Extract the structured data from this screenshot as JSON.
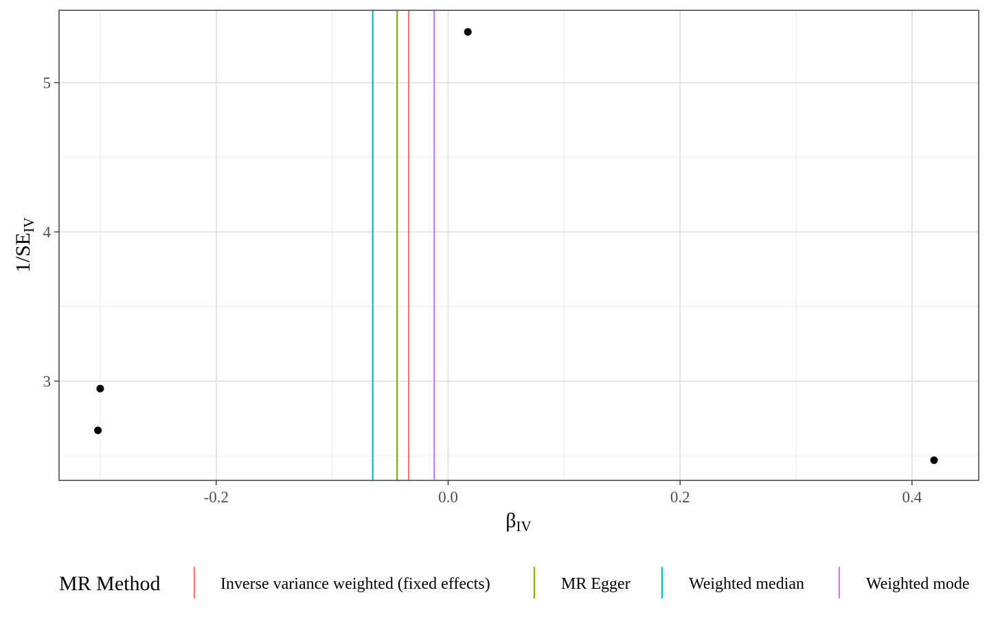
{
  "chart_data": {
    "type": "scatter",
    "xlabel": {
      "main": "β",
      "sub": "IV"
    },
    "ylabel": {
      "main": "1/SE",
      "sub": "IV"
    },
    "xlim": [
      -0.3355,
      0.4575
    ],
    "ylim": [
      2.335,
      5.485
    ],
    "x_ticks": [
      -0.2,
      0.0,
      0.2,
      0.4
    ],
    "x_tick_labels": [
      "-0.2",
      "0.0",
      "0.2",
      "0.4"
    ],
    "y_ticks": [
      3,
      4,
      5
    ],
    "y_tick_labels": [
      "3",
      "4",
      "5"
    ],
    "grid": true,
    "points": [
      {
        "x": 0.017,
        "y": 5.34
      },
      {
        "x": -0.3,
        "y": 2.95
      },
      {
        "x": -0.302,
        "y": 2.67
      },
      {
        "x": 0.419,
        "y": 2.47
      }
    ],
    "vlines": [
      {
        "name": "Inverse variance weighted (fixed effects)",
        "x": -0.034,
        "color": "#F8766D"
      },
      {
        "name": "MR Egger",
        "x": -0.044,
        "color": "#7CAE00"
      },
      {
        "name": "Weighted median",
        "x": -0.065,
        "color": "#00BFC4"
      },
      {
        "name": "Weighted mode",
        "x": -0.012,
        "color": "#C77CFF"
      }
    ],
    "legend": {
      "title": "MR Method",
      "placement": "bottom"
    }
  }
}
